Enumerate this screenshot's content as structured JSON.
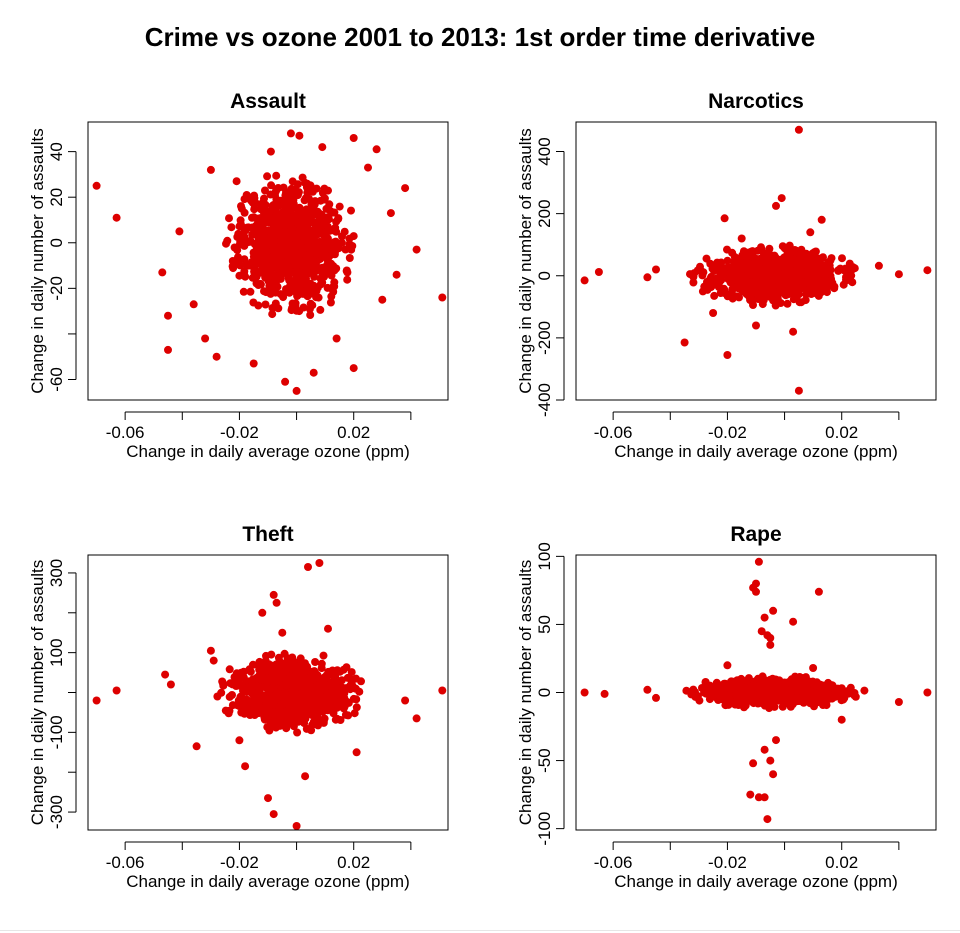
{
  "title": "Crime vs ozone 2001 to 2013: 1st order time derivative",
  "colors": {
    "points": "#dd0000",
    "axes": "#000000",
    "background": "#ffffff"
  },
  "chart_data": [
    {
      "type": "scatter",
      "title": "Assault",
      "xlabel": "Change in daily average ozone (ppm)",
      "ylabel": "Change in daily number of assaults",
      "xlim": [
        -0.073,
        0.053
      ],
      "ylim": [
        -69,
        53
      ],
      "xticks": [
        -0.06,
        -0.04,
        -0.02,
        0,
        0.02,
        0.04
      ],
      "xtick_labels": [
        "-0.06",
        "",
        "-0.02",
        "",
        "0.02",
        ""
      ],
      "yticks": [
        -60,
        -40,
        -20,
        0,
        20,
        40
      ],
      "ytick_labels": [
        "-60",
        "",
        "-20",
        "0",
        "20",
        "40"
      ],
      "grid": false,
      "points": [
        [
          -0.07,
          25
        ],
        [
          -0.063,
          11
        ],
        [
          0.042,
          -3
        ],
        [
          0.051,
          -24
        ],
        [
          -0.047,
          -13
        ],
        [
          -0.045,
          -32
        ],
        [
          -0.045,
          -47
        ],
        [
          -0.028,
          -50
        ],
        [
          -0.03,
          32
        ],
        [
          -0.004,
          -61
        ],
        [
          0,
          -65
        ],
        [
          0.02,
          -55
        ],
        [
          0.02,
          46
        ],
        [
          0.028,
          41
        ],
        [
          -0.002,
          48
        ],
        [
          0.001,
          47
        ],
        [
          0.006,
          -57
        ],
        [
          -0.015,
          -53
        ],
        [
          0.038,
          24
        ],
        [
          0.035,
          -14
        ],
        [
          -0.032,
          -42
        ],
        [
          -0.041,
          5
        ],
        [
          0.025,
          33
        ],
        [
          0.033,
          13
        ],
        [
          -0.009,
          40
        ],
        [
          0.014,
          -42
        ],
        [
          -0.036,
          -27
        ],
        [
          0.03,
          -25
        ],
        [
          -0.021,
          27
        ],
        [
          0.009,
          42
        ]
      ],
      "cloud": {
        "cx": -0.002,
        "cy": 0,
        "sx": 0.009,
        "sy": 13,
        "n": 900,
        "seed": 11,
        "clip": 2.6
      }
    },
    {
      "type": "scatter",
      "title": "Narcotics",
      "xlabel": "Change in daily average ozone (ppm)",
      "ylabel": "Change in daily number of assaults",
      "xlim": [
        -0.073,
        0.053
      ],
      "ylim": [
        -400,
        495
      ],
      "xticks": [
        -0.06,
        -0.04,
        -0.02,
        0,
        0.02,
        0.04
      ],
      "xtick_labels": [
        "-0.06",
        "",
        "-0.02",
        "",
        "0.02",
        ""
      ],
      "yticks": [
        -400,
        -200,
        0,
        200,
        400
      ],
      "ytick_labels": [
        "-400",
        "-200",
        "0",
        "200",
        "400"
      ],
      "grid": false,
      "points": [
        [
          0.005,
          470
        ],
        [
          -0.001,
          250
        ],
        [
          -0.003,
          225
        ],
        [
          -0.021,
          185
        ],
        [
          0.013,
          180
        ],
        [
          -0.035,
          -215
        ],
        [
          -0.02,
          -255
        ],
        [
          0.005,
          -370
        ],
        [
          -0.07,
          -15
        ],
        [
          -0.065,
          12
        ],
        [
          0.033,
          32
        ],
        [
          0.05,
          18
        ],
        [
          -0.048,
          -5
        ],
        [
          -0.045,
          20
        ],
        [
          0.04,
          5
        ],
        [
          -0.01,
          -160
        ],
        [
          0.003,
          -180
        ],
        [
          -0.015,
          120
        ],
        [
          0.009,
          140
        ],
        [
          -0.025,
          -120
        ]
      ],
      "cloud": {
        "cx": -0.004,
        "cy": 0,
        "sx": 0.011,
        "sy": 38,
        "n": 900,
        "seed": 23,
        "clip": 2.7
      }
    },
    {
      "type": "scatter",
      "title": "Theft",
      "xlabel": "Change in daily average ozone (ppm)",
      "ylabel": "Change in daily number of assaults",
      "xlim": [
        -0.073,
        0.053
      ],
      "ylim": [
        -345,
        345
      ],
      "xticks": [
        -0.06,
        -0.04,
        -0.02,
        0,
        0.02,
        0.04
      ],
      "xtick_labels": [
        "-0.06",
        "",
        "-0.02",
        "",
        "0.02",
        ""
      ],
      "yticks": [
        -300,
        -200,
        -100,
        0,
        100,
        200,
        300
      ],
      "ytick_labels": [
        "-300",
        "",
        "-100",
        "",
        "100",
        "",
        "300"
      ],
      "grid": false,
      "points": [
        [
          0.004,
          315
        ],
        [
          0.008,
          325
        ],
        [
          -0.008,
          245
        ],
        [
          -0.007,
          225
        ],
        [
          -0.012,
          200
        ],
        [
          -0.01,
          -265
        ],
        [
          -0.008,
          -305
        ],
        [
          0,
          -335
        ],
        [
          -0.07,
          -20
        ],
        [
          -0.063,
          5
        ],
        [
          0.051,
          5
        ],
        [
          0.042,
          -65
        ],
        [
          -0.046,
          45
        ],
        [
          -0.044,
          20
        ],
        [
          -0.035,
          -135
        ],
        [
          -0.03,
          105
        ],
        [
          0.038,
          -20
        ],
        [
          0.021,
          -150
        ],
        [
          -0.018,
          -185
        ],
        [
          0.003,
          -210
        ],
        [
          -0.005,
          150
        ],
        [
          0.011,
          160
        ],
        [
          -0.029,
          80
        ],
        [
          -0.02,
          -120
        ]
      ],
      "cloud": {
        "cx": -0.002,
        "cy": 0,
        "sx": 0.01,
        "sy": 40,
        "n": 900,
        "seed": 37,
        "clip": 2.6
      }
    },
    {
      "type": "scatter",
      "title": "Rape",
      "xlabel": "Change in daily average ozone (ppm)",
      "ylabel": "Change in daily number of assaults",
      "xlim": [
        -0.073,
        0.053
      ],
      "ylim": [
        -101,
        101
      ],
      "xticks": [
        -0.06,
        -0.04,
        -0.02,
        0,
        0.02,
        0.04
      ],
      "xtick_labels": [
        "-0.06",
        "",
        "-0.02",
        "",
        "0.02",
        ""
      ],
      "yticks": [
        -100,
        -50,
        0,
        50,
        100
      ],
      "ytick_labels": [
        "-100",
        "-50",
        "0",
        "50",
        "100"
      ],
      "grid": false,
      "points": [
        [
          -0.009,
          96
        ],
        [
          -0.01,
          80
        ],
        [
          -0.01,
          74
        ],
        [
          -0.011,
          77
        ],
        [
          -0.008,
          45
        ],
        [
          -0.005,
          35
        ],
        [
          -0.004,
          60
        ],
        [
          0.012,
          74
        ],
        [
          -0.007,
          55
        ],
        [
          -0.005,
          40
        ],
        [
          -0.006,
          42
        ],
        [
          0.003,
          52
        ],
        [
          -0.011,
          -52
        ],
        [
          -0.012,
          -75
        ],
        [
          -0.009,
          -77
        ],
        [
          -0.007,
          -77
        ],
        [
          -0.006,
          -93
        ],
        [
          -0.005,
          -50
        ],
        [
          -0.004,
          -60
        ],
        [
          -0.007,
          -42
        ],
        [
          -0.003,
          -35
        ],
        [
          -0.07,
          0
        ],
        [
          -0.063,
          -1
        ],
        [
          0.05,
          0
        ],
        [
          0.04,
          -7
        ],
        [
          -0.048,
          2
        ],
        [
          -0.045,
          -4
        ],
        [
          0.02,
          -20
        ],
        [
          -0.02,
          20
        ],
        [
          0.01,
          18
        ]
      ],
      "cloud": {
        "cx": -0.004,
        "cy": 0,
        "sx": 0.012,
        "sy": 4.5,
        "n": 850,
        "seed": 51,
        "clip": 2.7
      }
    }
  ]
}
